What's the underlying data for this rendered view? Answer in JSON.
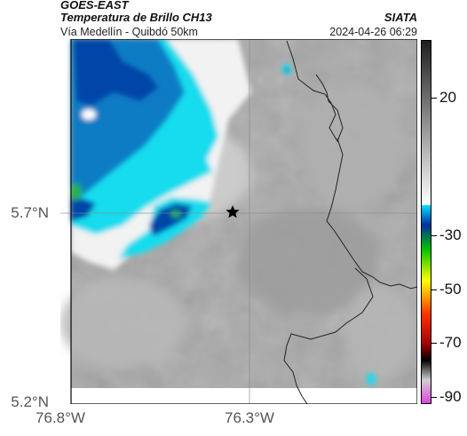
{
  "header": {
    "satellite": "GOES-EAST",
    "product": "Temperatura de Brillo CH13",
    "region": "Vía Medellín - Quibdó 50km",
    "organization": "SIATA",
    "timestamp": "2024-04-26 06:29"
  },
  "axes": {
    "lat_labels": [
      "5.7°N",
      "5.2°N"
    ],
    "lon_labels": [
      "76.8°W",
      "76.3°W"
    ],
    "grid": true
  },
  "colorbar": {
    "labels": [
      "20",
      "-30",
      "-50",
      "-70",
      "-90"
    ],
    "colors": [
      "#1e1e1e",
      "#ffffff",
      "#00e0ff",
      "#0030a0",
      "#00c000",
      "#ffff00",
      "#ff3000",
      "#a00000",
      "#000000",
      "#e040e0"
    ]
  },
  "map": {
    "marker": "star-icon",
    "colors": {
      "cold_dark": "#0045a8",
      "cold_mid": "#0a7cc4",
      "cyan": "#12dcee",
      "green": "#22b24a",
      "cloud_white": "#f2f2f2",
      "clear_gray": "#a8a8a8"
    }
  }
}
